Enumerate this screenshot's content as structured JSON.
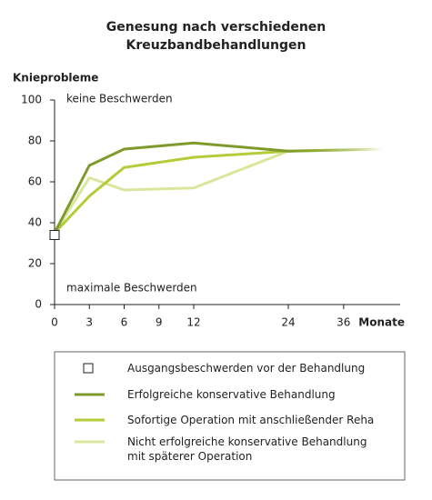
{
  "chart_data": {
    "type": "line",
    "title": "Genesung nach verschiedenen\nKreuzbandbehandlungen",
    "y_label": "Knieprobleme",
    "x_label": "Monate",
    "annotations": [
      "keine Beschwerden",
      "maximale Beschwerden"
    ],
    "x": [
      0,
      3,
      6,
      12,
      24,
      48
    ],
    "xscale": "linear-then-log",
    "xlim": [
      0,
      48
    ],
    "xticks": [
      0,
      3,
      6,
      9,
      12,
      24,
      36
    ],
    "ylim": [
      0,
      100
    ],
    "yticks": [
      0,
      20,
      40,
      60,
      80,
      100
    ],
    "start_marker": {
      "label": "Ausgangsbeschwerden vor der Behandlung",
      "x": 0,
      "y": 34
    },
    "series": [
      {
        "name": "Erfolgreiche konservative Behandlung",
        "color": "#7f9a2c",
        "values": [
          35,
          68,
          76,
          79,
          75,
          76
        ]
      },
      {
        "name": "Sofortige Operation mit anschließender Reha",
        "color": "#b2cc3a",
        "values": [
          35,
          53,
          67,
          72,
          75,
          76
        ]
      },
      {
        "name": "Nicht erfolgreiche konservative Behandlung\nmit späterer Operation",
        "color": "#d8e79c",
        "values": [
          35,
          62,
          56,
          57,
          75,
          76
        ]
      }
    ]
  }
}
